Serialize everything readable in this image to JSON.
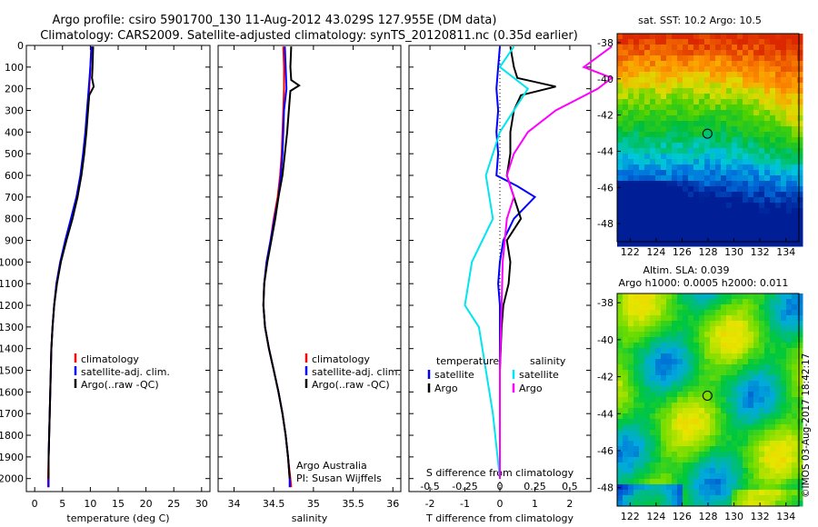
{
  "title_line1": "Argo profile: csiro 5901700_130 11-Aug-2012 43.029S 127.955E (DM data)",
  "title_line2": "Climatology: CARS2009. Satellite-adjusted climatology: synTS_20120811.nc (0.35d earlier)",
  "credit": "©IMOS 03-Aug-2017 18:42:17",
  "chart_data": [
    {
      "type": "line",
      "id": "temperature",
      "xlabel": "temperature (deg C)",
      "xlim": [
        -1.5,
        31.5
      ],
      "ylim": [
        0,
        2060
      ],
      "y_reversed": true,
      "xticks": [
        0,
        5,
        10,
        15,
        20,
        25,
        30
      ],
      "yticks": [
        0,
        100,
        200,
        300,
        400,
        500,
        600,
        700,
        800,
        900,
        1000,
        1100,
        1200,
        1300,
        1400,
        1500,
        1600,
        1700,
        1800,
        1900,
        2000
      ],
      "legend": [
        "climatology",
        "satellite-adj. clim.",
        "Argo(..raw -QC)"
      ],
      "series": [
        {
          "name": "climatology",
          "color": "#ff0000",
          "points": [
            [
              10.2,
              5
            ],
            [
              10.0,
              100
            ],
            [
              9.8,
              200
            ],
            [
              9.5,
              300
            ],
            [
              9.2,
              400
            ],
            [
              8.8,
              500
            ],
            [
              8.3,
              600
            ],
            [
              7.7,
              700
            ],
            [
              6.7,
              800
            ],
            [
              5.6,
              900
            ],
            [
              4.6,
              1000
            ],
            [
              3.9,
              1100
            ],
            [
              3.5,
              1200
            ],
            [
              3.2,
              1300
            ],
            [
              3.0,
              1400
            ],
            [
              2.9,
              1500
            ],
            [
              2.8,
              1600
            ],
            [
              2.7,
              1700
            ],
            [
              2.6,
              1800
            ],
            [
              2.5,
              1900
            ],
            [
              2.4,
              2000
            ],
            [
              2.4,
              2040
            ]
          ]
        },
        {
          "name": "satellite-adj. clim.",
          "color": "#0000ff",
          "points": [
            [
              10.2,
              5
            ],
            [
              10.0,
              100
            ],
            [
              9.7,
              200
            ],
            [
              9.4,
              300
            ],
            [
              9.1,
              400
            ],
            [
              8.7,
              500
            ],
            [
              8.2,
              600
            ],
            [
              7.5,
              700
            ],
            [
              6.5,
              800
            ],
            [
              5.5,
              900
            ],
            [
              4.6,
              1000
            ],
            [
              3.9,
              1100
            ],
            [
              3.5,
              1200
            ],
            [
              3.2,
              1300
            ],
            [
              3.0,
              1400
            ],
            [
              2.9,
              1500
            ],
            [
              2.8,
              1600
            ],
            [
              2.7,
              1700
            ],
            [
              2.6,
              1800
            ],
            [
              2.5,
              1900
            ],
            [
              2.5,
              2000
            ],
            [
              2.5,
              2040
            ]
          ]
        },
        {
          "name": "Argo(..raw -QC)",
          "color": "#000000",
          "points": [
            [
              10.5,
              5
            ],
            [
              10.4,
              100
            ],
            [
              10.3,
              150
            ],
            [
              10.6,
              190
            ],
            [
              9.8,
              230
            ],
            [
              9.6,
              300
            ],
            [
              9.3,
              400
            ],
            [
              8.9,
              500
            ],
            [
              8.4,
              600
            ],
            [
              7.7,
              700
            ],
            [
              6.8,
              800
            ],
            [
              5.7,
              900
            ],
            [
              4.7,
              1000
            ],
            [
              4.0,
              1100
            ],
            [
              3.5,
              1200
            ],
            [
              3.2,
              1300
            ],
            [
              3.0,
              1400
            ],
            [
              2.9,
              1500
            ],
            [
              2.8,
              1600
            ],
            [
              2.7,
              1700
            ],
            [
              2.6,
              1800
            ],
            [
              2.5,
              1900
            ],
            [
              2.5,
              2000
            ]
          ]
        }
      ]
    },
    {
      "type": "line",
      "id": "salinity",
      "xlabel": "salinity",
      "xlim": [
        33.8,
        36.1
      ],
      "ylim": [
        0,
        2060
      ],
      "y_reversed": true,
      "xticks": [
        34,
        34.5,
        35,
        35.5,
        36
      ],
      "legend": [
        "climatology",
        "satellite-adj. clim.",
        "Argo(..raw -QC)"
      ],
      "annotation": [
        "Argo Australia",
        "PI: Susan Wijffels"
      ],
      "series": [
        {
          "name": "climatology",
          "color": "#ff0000",
          "points": [
            [
              34.62,
              5
            ],
            [
              34.63,
              100
            ],
            [
              34.63,
              200
            ],
            [
              34.62,
              300
            ],
            [
              34.61,
              400
            ],
            [
              34.6,
              500
            ],
            [
              34.58,
              600
            ],
            [
              34.55,
              700
            ],
            [
              34.5,
              800
            ],
            [
              34.46,
              900
            ],
            [
              34.41,
              1000
            ],
            [
              34.38,
              1100
            ],
            [
              34.37,
              1200
            ],
            [
              34.39,
              1300
            ],
            [
              34.44,
              1400
            ],
            [
              34.5,
              1500
            ],
            [
              34.56,
              1600
            ],
            [
              34.61,
              1700
            ],
            [
              34.65,
              1800
            ],
            [
              34.68,
              1900
            ],
            [
              34.71,
              2000
            ],
            [
              34.72,
              2040
            ]
          ]
        },
        {
          "name": "satellite-adj. clim.",
          "color": "#0000ff",
          "points": [
            [
              34.64,
              5
            ],
            [
              34.65,
              100
            ],
            [
              34.66,
              200
            ],
            [
              34.63,
              300
            ],
            [
              34.62,
              400
            ],
            [
              34.61,
              500
            ],
            [
              34.59,
              600
            ],
            [
              34.56,
              700
            ],
            [
              34.51,
              800
            ],
            [
              34.46,
              900
            ],
            [
              34.41,
              1000
            ],
            [
              34.38,
              1100
            ],
            [
              34.37,
              1200
            ],
            [
              34.39,
              1300
            ],
            [
              34.44,
              1400
            ],
            [
              34.5,
              1500
            ],
            [
              34.56,
              1600
            ],
            [
              34.61,
              1700
            ],
            [
              34.65,
              1800
            ],
            [
              34.68,
              1900
            ],
            [
              34.7,
              2000
            ],
            [
              34.7,
              2040
            ]
          ]
        },
        {
          "name": "Argo(..raw -QC)",
          "color": "#000000",
          "points": [
            [
              34.72,
              5
            ],
            [
              34.71,
              100
            ],
            [
              34.72,
              160
            ],
            [
              34.82,
              185
            ],
            [
              34.71,
              210
            ],
            [
              34.69,
              300
            ],
            [
              34.67,
              400
            ],
            [
              34.64,
              500
            ],
            [
              34.61,
              600
            ],
            [
              34.56,
              700
            ],
            [
              34.52,
              800
            ],
            [
              34.47,
              900
            ],
            [
              34.42,
              1000
            ],
            [
              34.38,
              1100
            ],
            [
              34.37,
              1200
            ],
            [
              34.39,
              1300
            ],
            [
              34.44,
              1400
            ],
            [
              34.5,
              1500
            ],
            [
              34.56,
              1600
            ],
            [
              34.61,
              1700
            ],
            [
              34.65,
              1800
            ],
            [
              34.68,
              1900
            ],
            [
              34.7,
              2000
            ]
          ]
        }
      ]
    },
    {
      "type": "line",
      "id": "difference",
      "xlabel": "T difference from climatology",
      "xlabel_top": "S difference from climatology",
      "xlim": [
        -2.6,
        2.6
      ],
      "ylim": [
        0,
        2060
      ],
      "y_reversed": true,
      "xticks": [
        -2,
        -1,
        0,
        1,
        2
      ],
      "xticks_top": [
        -0.5,
        -0.25,
        0,
        0.25,
        0.5
      ],
      "legend_groups": [
        {
          "header": "temperature",
          "items": [
            {
              "label": "satellite",
              "color": "#0000ff"
            },
            {
              "label": "Argo",
              "color": "#000000"
            }
          ]
        },
        {
          "header": "salinity",
          "items": [
            {
              "label": "satellite",
              "color": "#00e5ee"
            },
            {
              "label": "Argo",
              "color": "#ff00ff"
            }
          ]
        }
      ],
      "series": [
        {
          "name": "T satellite",
          "color": "#0000ff",
          "points": [
            [
              0.0,
              5
            ],
            [
              -0.05,
              100
            ],
            [
              -0.1,
              200
            ],
            [
              -0.05,
              300
            ],
            [
              -0.1,
              400
            ],
            [
              -0.05,
              500
            ],
            [
              -0.1,
              600
            ],
            [
              0.5,
              650
            ],
            [
              1.0,
              700
            ],
            [
              0.4,
              800
            ],
            [
              0.1,
              900
            ],
            [
              0.0,
              1000
            ],
            [
              -0.05,
              1100
            ],
            [
              0.0,
              1200
            ],
            [
              0.0,
              1300
            ],
            [
              0.0,
              1500
            ],
            [
              0.0,
              1700
            ],
            [
              0.0,
              2000
            ]
          ]
        },
        {
          "name": "T Argo",
          "color": "#000000",
          "points": [
            [
              0.3,
              5
            ],
            [
              0.4,
              100
            ],
            [
              0.5,
              150
            ],
            [
              1.6,
              190
            ],
            [
              0.6,
              230
            ],
            [
              0.4,
              300
            ],
            [
              0.3,
              400
            ],
            [
              0.3,
              500
            ],
            [
              0.2,
              600
            ],
            [
              0.4,
              700
            ],
            [
              0.6,
              800
            ],
            [
              0.2,
              900
            ],
            [
              0.3,
              1000
            ],
            [
              0.25,
              1100
            ],
            [
              0.1,
              1200
            ],
            [
              0.05,
              1300
            ],
            [
              0.0,
              1500
            ],
            [
              0.0,
              1800
            ],
            [
              0.0,
              2000
            ]
          ]
        },
        {
          "name": "S satellite",
          "color": "#00e5ee",
          "points": [
            [
              0.1,
              5
            ],
            [
              0.0,
              100
            ],
            [
              0.2,
              200
            ],
            [
              0.1,
              300
            ],
            [
              0.0,
              400
            ],
            [
              -0.1,
              600
            ],
            [
              -0.05,
              800
            ],
            [
              -0.2,
              1000
            ],
            [
              -0.25,
              1200
            ],
            [
              -0.15,
              1300
            ],
            [
              -0.1,
              1500
            ],
            [
              -0.05,
              1700
            ],
            [
              0.0,
              2000
            ]
          ]
        },
        {
          "name": "S Argo",
          "color": "#ff00ff",
          "points": [
            [
              0.8,
              5
            ],
            [
              0.6,
              100
            ],
            [
              0.8,
              150
            ],
            [
              0.7,
              200
            ],
            [
              0.4,
              300
            ],
            [
              0.2,
              400
            ],
            [
              0.1,
              500
            ],
            [
              0.05,
              600
            ],
            [
              0.1,
              700
            ],
            [
              0.05,
              800
            ],
            [
              0.02,
              1000
            ],
            [
              0.0,
              1500
            ],
            [
              0.0,
              2000
            ]
          ]
        }
      ]
    },
    {
      "type": "heatmap",
      "id": "sst_map",
      "title": "sat. SST: 10.2  Argo: 10.5",
      "xticks": [
        122,
        124,
        126,
        128,
        130,
        132,
        134
      ],
      "yticks": [
        -38,
        -40,
        -42,
        -44,
        -46,
        -48
      ],
      "xlim": [
        121,
        135
      ],
      "ylim": [
        -49,
        -37.5
      ],
      "marker": [
        127.955,
        -43.029
      ]
    },
    {
      "type": "heatmap",
      "id": "sla_map",
      "title_line1": "Altim. SLA: 0.039",
      "title_line2": "Argo h1000: 0.0005  h2000: 0.011",
      "xticks": [
        122,
        124,
        126,
        128,
        130,
        132,
        134
      ],
      "yticks": [
        -38,
        -40,
        -42,
        -44,
        -46,
        -48
      ],
      "xlim": [
        121,
        135
      ],
      "ylim": [
        -49,
        -37.5
      ],
      "marker": [
        127.955,
        -43.029
      ]
    }
  ]
}
